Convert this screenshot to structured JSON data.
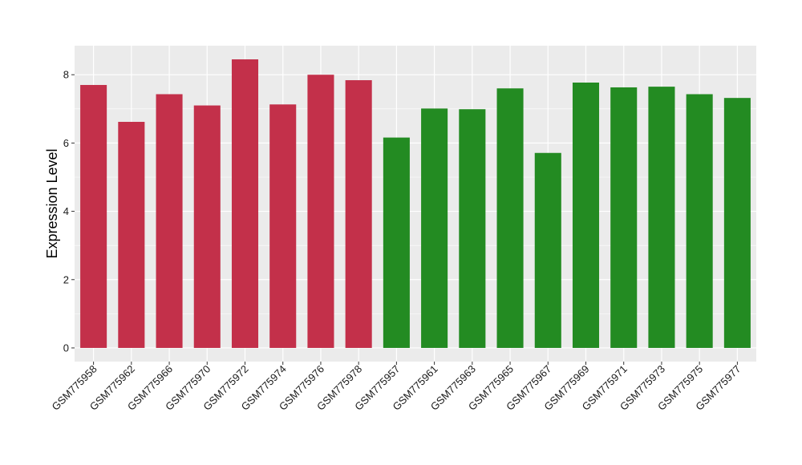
{
  "chart_data": {
    "type": "bar",
    "title": "",
    "xlabel": "",
    "ylabel": "Expression Level",
    "ylim": [
      -0.4,
      8.85
    ],
    "yticks": [
      0,
      2,
      4,
      6,
      8
    ],
    "grid": true,
    "legend": "none",
    "categories": [
      "GSM775958",
      "GSM775962",
      "GSM775966",
      "GSM775970",
      "GSM775972",
      "GSM775974",
      "GSM775976",
      "GSM775978",
      "GSM775957",
      "GSM775961",
      "GSM775963",
      "GSM775965",
      "GSM775967",
      "GSM775969",
      "GSM775971",
      "GSM775973",
      "GSM775975",
      "GSM775977"
    ],
    "values": [
      7.7,
      6.62,
      7.43,
      7.1,
      8.45,
      7.13,
      8.0,
      7.84,
      6.16,
      7.01,
      6.99,
      7.6,
      5.71,
      7.77,
      7.63,
      7.65,
      7.43,
      7.32
    ],
    "group_colors": [
      "#c3304a",
      "#c3304a",
      "#c3304a",
      "#c3304a",
      "#c3304a",
      "#c3304a",
      "#c3304a",
      "#c3304a",
      "#238b22",
      "#238b22",
      "#238b22",
      "#238b22",
      "#238b22",
      "#238b22",
      "#238b22",
      "#238b22",
      "#238b22",
      "#238b22"
    ],
    "panel_color": "#ebebeb",
    "grid_color": "#ffffff"
  }
}
